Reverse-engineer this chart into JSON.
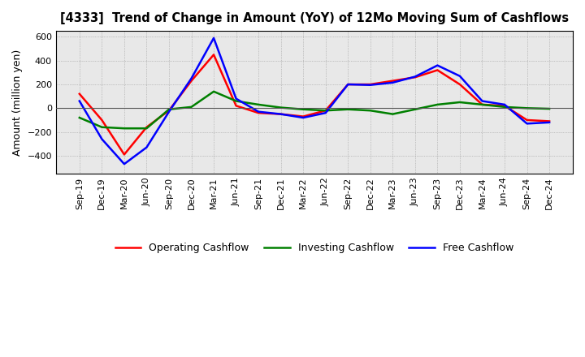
{
  "title": "[4333]  Trend of Change in Amount (YoY) of 12Mo Moving Sum of Cashflows",
  "ylabel": "Amount (million yen)",
  "x_labels": [
    "Sep-19",
    "Dec-19",
    "Mar-20",
    "Jun-20",
    "Sep-20",
    "Dec-20",
    "Mar-21",
    "Jun-21",
    "Sep-21",
    "Dec-21",
    "Mar-22",
    "Jun-22",
    "Sep-22",
    "Dec-22",
    "Mar-23",
    "Jun-23",
    "Sep-23",
    "Dec-23",
    "Mar-24",
    "Jun-24",
    "Sep-24",
    "Dec-24"
  ],
  "operating": [
    120,
    -100,
    -390,
    -160,
    -20,
    230,
    450,
    20,
    -40,
    -50,
    -70,
    -20,
    200,
    200,
    230,
    260,
    320,
    200,
    30,
    20,
    -100,
    -110
  ],
  "investing": [
    -80,
    -160,
    -170,
    -170,
    -10,
    10,
    140,
    60,
    30,
    5,
    -10,
    -20,
    -10,
    -20,
    -50,
    -10,
    30,
    50,
    30,
    10,
    0,
    -5
  ],
  "free": [
    60,
    -260,
    -470,
    -330,
    -30,
    250,
    590,
    80,
    -30,
    -50,
    -80,
    -40,
    200,
    195,
    215,
    265,
    360,
    270,
    60,
    30,
    -130,
    -120
  ],
  "operating_color": "#ff0000",
  "investing_color": "#008000",
  "free_color": "#0000ff",
  "ylim": [
    -550,
    650
  ],
  "yticks": [
    -400,
    -200,
    0,
    200,
    400,
    600
  ],
  "bg_color": "#ffffff",
  "plot_bg_color": "#e8e8e8",
  "grid_color": "#999999",
  "legend_labels": [
    "Operating Cashflow",
    "Investing Cashflow",
    "Free Cashflow"
  ]
}
